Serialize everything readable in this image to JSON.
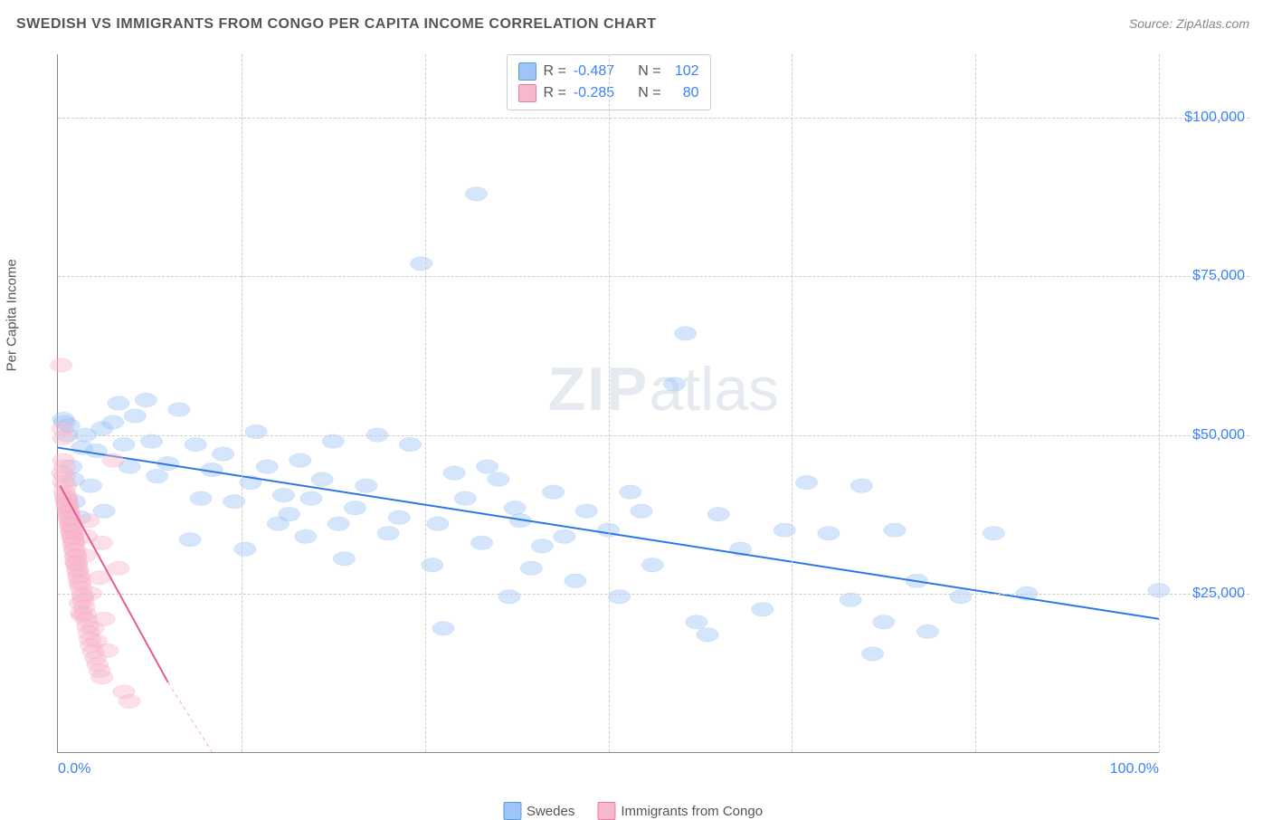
{
  "title": "SWEDISH VS IMMIGRANTS FROM CONGO PER CAPITA INCOME CORRELATION CHART",
  "source": "Source: ZipAtlas.com",
  "y_axis_label": "Per Capita Income",
  "watermark": {
    "bold": "ZIP",
    "rest": "atlas"
  },
  "chart": {
    "type": "scatter",
    "background_color": "#ffffff",
    "grid_color": "#cccccc",
    "axis_color": "#888888",
    "xlim": [
      0,
      100
    ],
    "ylim": [
      0,
      110000
    ],
    "x_ticks": [
      0,
      16.67,
      33.33,
      50,
      66.67,
      83.33,
      100
    ],
    "x_tick_labels": {
      "0": "0.0%",
      "100": "100.0%"
    },
    "y_ticks": [
      25000,
      50000,
      75000,
      100000
    ],
    "y_tick_labels": {
      "25000": "$25,000",
      "50000": "$50,000",
      "75000": "$75,000",
      "100000": "$100,000"
    },
    "marker_radius": 8,
    "marker_opacity": 0.45,
    "series": [
      {
        "name": "Swedes",
        "color_fill": "#9fc5f8",
        "color_stroke": "#5b9bd5",
        "trend_color": "#2b78e4",
        "trend_width": 2,
        "R": "-0.487",
        "N": "102",
        "trendline": {
          "x1": 0,
          "y1": 48000,
          "x2": 100,
          "y2": 21000
        },
        "points": [
          [
            0.5,
            52500
          ],
          [
            0.6,
            52000
          ],
          [
            0.8,
            50000
          ],
          [
            1.0,
            51500
          ],
          [
            1.2,
            45000
          ],
          [
            1.4,
            43000
          ],
          [
            1.5,
            39500
          ],
          [
            2.0,
            37000
          ],
          [
            2.2,
            48000
          ],
          [
            2.5,
            50000
          ],
          [
            3.0,
            42000
          ],
          [
            3.5,
            47500
          ],
          [
            4.0,
            51000
          ],
          [
            4.2,
            38000
          ],
          [
            5.0,
            52000
          ],
          [
            5.5,
            55000
          ],
          [
            6.0,
            48500
          ],
          [
            6.5,
            45000
          ],
          [
            7.0,
            53000
          ],
          [
            8.0,
            55500
          ],
          [
            8.5,
            49000
          ],
          [
            9.0,
            43500
          ],
          [
            10.0,
            45500
          ],
          [
            11.0,
            54000
          ],
          [
            12.0,
            33500
          ],
          [
            12.5,
            48500
          ],
          [
            13.0,
            40000
          ],
          [
            14.0,
            44500
          ],
          [
            15.0,
            47000
          ],
          [
            16.0,
            39500
          ],
          [
            17.0,
            32000
          ],
          [
            17.5,
            42500
          ],
          [
            18.0,
            50500
          ],
          [
            19.0,
            45000
          ],
          [
            20.0,
            36000
          ],
          [
            20.5,
            40500
          ],
          [
            21.0,
            37500
          ],
          [
            22.0,
            46000
          ],
          [
            22.5,
            34000
          ],
          [
            23.0,
            40000
          ],
          [
            24.0,
            43000
          ],
          [
            25.0,
            49000
          ],
          [
            25.5,
            36000
          ],
          [
            26.0,
            30500
          ],
          [
            27.0,
            38500
          ],
          [
            28.0,
            42000
          ],
          [
            29.0,
            50000
          ],
          [
            30.0,
            34500
          ],
          [
            31.0,
            37000
          ],
          [
            32.0,
            48500
          ],
          [
            33.0,
            77000
          ],
          [
            34.0,
            29500
          ],
          [
            34.5,
            36000
          ],
          [
            35.0,
            19500
          ],
          [
            36.0,
            44000
          ],
          [
            37.0,
            40000
          ],
          [
            38.0,
            88000
          ],
          [
            38.5,
            33000
          ],
          [
            39.0,
            45000
          ],
          [
            40.0,
            43000
          ],
          [
            41.0,
            24500
          ],
          [
            41.5,
            38500
          ],
          [
            42.0,
            36500
          ],
          [
            43.0,
            29000
          ],
          [
            44.0,
            32500
          ],
          [
            45.0,
            41000
          ],
          [
            46.0,
            34000
          ],
          [
            47.0,
            27000
          ],
          [
            48.0,
            38000
          ],
          [
            50.0,
            35000
          ],
          [
            51.0,
            24500
          ],
          [
            52.0,
            41000
          ],
          [
            53.0,
            38000
          ],
          [
            54.0,
            29500
          ],
          [
            56.0,
            58000
          ],
          [
            57.0,
            66000
          ],
          [
            58.0,
            20500
          ],
          [
            59.0,
            18500
          ],
          [
            60.0,
            37500
          ],
          [
            62.0,
            32000
          ],
          [
            64.0,
            22500
          ],
          [
            66.0,
            35000
          ],
          [
            68.0,
            42500
          ],
          [
            70.0,
            34500
          ],
          [
            72.0,
            24000
          ],
          [
            73.0,
            42000
          ],
          [
            74.0,
            15500
          ],
          [
            75.0,
            20500
          ],
          [
            76.0,
            35000
          ],
          [
            78.0,
            27000
          ],
          [
            79.0,
            19000
          ],
          [
            82.0,
            24500
          ],
          [
            85.0,
            34500
          ],
          [
            88.0,
            25000
          ],
          [
            100.0,
            25500
          ]
        ]
      },
      {
        "name": "Immigrants from Congo",
        "color_fill": "#f8b8cb",
        "color_stroke": "#e87ba0",
        "trend_color": "#e75a8d",
        "trend_width": 2,
        "R": "-0.285",
        "N": "80",
        "trendline": {
          "x1": 0.2,
          "y1": 42000,
          "x2": 10,
          "y2": 11000
        },
        "trendline_dash": {
          "x1": 10,
          "y1": 11000,
          "x2": 14,
          "y2": 0
        },
        "points": [
          [
            0.3,
            61000
          ],
          [
            0.4,
            51000
          ],
          [
            0.5,
            49500
          ],
          [
            0.5,
            46000
          ],
          [
            0.6,
            45000
          ],
          [
            0.6,
            43500
          ],
          [
            0.7,
            42000
          ],
          [
            0.7,
            40500
          ],
          [
            0.8,
            40000
          ],
          [
            0.8,
            39500
          ],
          [
            0.9,
            39000
          ],
          [
            0.9,
            38500
          ],
          [
            1.0,
            38000
          ],
          [
            1.0,
            37500
          ],
          [
            1.1,
            37000
          ],
          [
            1.1,
            36500
          ],
          [
            1.2,
            36000
          ],
          [
            1.2,
            35500
          ],
          [
            1.3,
            35000
          ],
          [
            1.3,
            34500
          ],
          [
            1.4,
            34000
          ],
          [
            1.4,
            33500
          ],
          [
            1.5,
            33000
          ],
          [
            1.5,
            32000
          ],
          [
            1.6,
            31000
          ],
          [
            1.6,
            30000
          ],
          [
            1.7,
            29500
          ],
          [
            1.8,
            28500
          ],
          [
            1.9,
            27500
          ],
          [
            2.0,
            26500
          ],
          [
            2.0,
            23500
          ],
          [
            2.1,
            22000
          ],
          [
            2.2,
            21500
          ],
          [
            2.3,
            24500
          ],
          [
            2.5,
            31000
          ],
          [
            2.6,
            34000
          ],
          [
            2.8,
            36500
          ],
          [
            3.0,
            25000
          ],
          [
            3.2,
            19500
          ],
          [
            3.5,
            17500
          ],
          [
            3.8,
            27500
          ],
          [
            4.0,
            33000
          ],
          [
            4.2,
            21000
          ],
          [
            4.5,
            16000
          ],
          [
            5.0,
            46000
          ],
          [
            5.5,
            29000
          ],
          [
            6.0,
            9500
          ],
          [
            6.5,
            8000
          ],
          [
            0.4,
            44000
          ],
          [
            0.5,
            42500
          ],
          [
            0.6,
            41000
          ],
          [
            0.7,
            39800
          ],
          [
            0.8,
            38800
          ],
          [
            0.9,
            37800
          ],
          [
            1.0,
            36800
          ],
          [
            1.1,
            35800
          ],
          [
            1.2,
            34800
          ],
          [
            1.3,
            33800
          ],
          [
            1.4,
            32800
          ],
          [
            1.5,
            31800
          ],
          [
            1.6,
            30800
          ],
          [
            1.7,
            29800
          ],
          [
            1.8,
            28800
          ],
          [
            1.9,
            27800
          ],
          [
            2.0,
            26800
          ],
          [
            2.1,
            25800
          ],
          [
            2.2,
            24800
          ],
          [
            2.3,
            23800
          ],
          [
            2.4,
            22800
          ],
          [
            2.5,
            21800
          ],
          [
            2.6,
            20800
          ],
          [
            2.7,
            19800
          ],
          [
            2.8,
            18800
          ],
          [
            2.9,
            17800
          ],
          [
            3.0,
            16800
          ],
          [
            3.2,
            15800
          ],
          [
            3.4,
            14800
          ],
          [
            3.6,
            13800
          ],
          [
            3.8,
            12800
          ],
          [
            4.0,
            11800
          ]
        ]
      }
    ]
  },
  "stats_box": {
    "rows": [
      {
        "swatch_fill": "#9fc5f8",
        "swatch_stroke": "#5b9bd5",
        "r_label": "R =",
        "r_val": "-0.487",
        "n_label": "N =",
        "n_val": "102"
      },
      {
        "swatch_fill": "#f8b8cb",
        "swatch_stroke": "#e87ba0",
        "r_label": "R =",
        "r_val": "-0.285",
        "n_label": "N =",
        "n_val": "80"
      }
    ]
  },
  "bottom_legend": [
    {
      "swatch_fill": "#9fc5f8",
      "swatch_stroke": "#5b9bd5",
      "label": "Swedes"
    },
    {
      "swatch_fill": "#f8b8cb",
      "swatch_stroke": "#e87ba0",
      "label": "Immigrants from Congo"
    }
  ]
}
